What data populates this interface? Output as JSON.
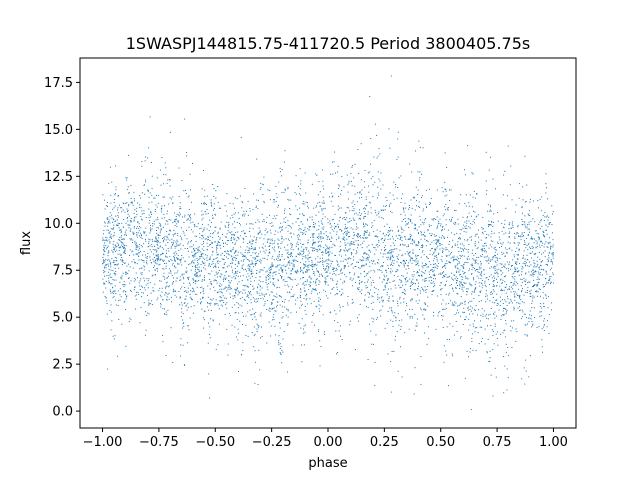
{
  "chart_data": {
    "type": "scatter",
    "title": "1SWASPJ144815.75-411720.5 Period 3800405.75s",
    "xlabel": "phase",
    "ylabel": "flux",
    "xlim": [
      -1.1,
      1.1
    ],
    "ylim": [
      -0.9,
      18.8
    ],
    "x_ticks": [
      -1.0,
      -0.75,
      -0.5,
      -0.25,
      0.0,
      0.25,
      0.5,
      0.75,
      1.0
    ],
    "x_tick_labels": [
      "−1.00",
      "−0.75",
      "−0.50",
      "−0.25",
      "0.00",
      "0.25",
      "0.50",
      "0.75",
      "1.00"
    ],
    "y_ticks": [
      0.0,
      2.5,
      5.0,
      7.5,
      10.0,
      12.5,
      15.0,
      17.5
    ],
    "y_tick_labels": [
      "0.0",
      "2.5",
      "5.0",
      "7.5",
      "10.0",
      "12.5",
      "15.0",
      "17.5"
    ],
    "grid": false,
    "legend": "none",
    "marker_color": "#1f77b4",
    "series": [
      {
        "x": [
          -1.0,
          -0.9,
          -0.8,
          -0.7,
          -0.6,
          -0.5,
          -0.4,
          -0.3,
          -0.2,
          -0.1,
          0.0,
          0.1,
          0.2,
          0.3,
          0.4,
          0.5,
          0.6,
          0.7,
          0.8,
          0.9,
          1.0
        ],
        "y": [
          8.4,
          8.6,
          8.8,
          8.5,
          8.1,
          7.8,
          7.5,
          7.4,
          7.6,
          8.0,
          8.5,
          8.8,
          8.6,
          8.3,
          8.2,
          8.0,
          7.6,
          7.3,
          7.3,
          7.6,
          8.2
        ],
        "spread": [
          2.0,
          2.2,
          2.4,
          2.6,
          2.2,
          2.1,
          2.3,
          2.6,
          2.5,
          2.2,
          2.1,
          2.3,
          2.5,
          2.7,
          2.4,
          2.2,
          2.4,
          2.6,
          2.5,
          2.3,
          2.0
        ]
      }
    ]
  }
}
